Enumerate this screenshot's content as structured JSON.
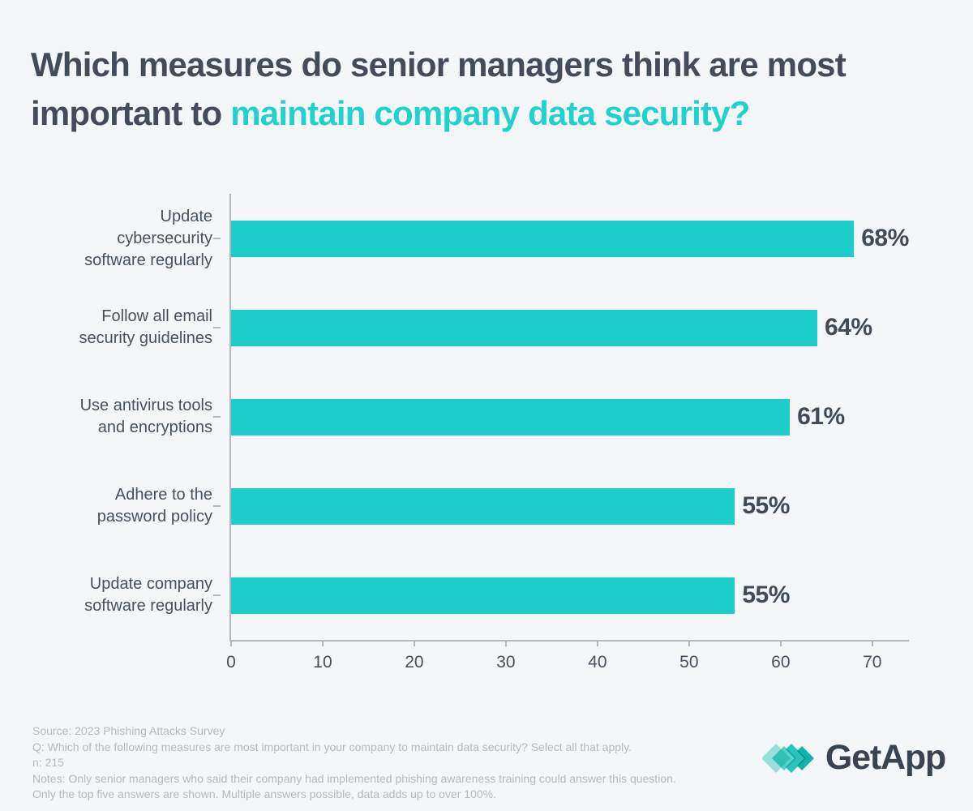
{
  "colors": {
    "background": "#f4f6f7",
    "title_dark": "#434c58",
    "accent_teal": "#1fd2cb",
    "bar_teal": "#1ccdc9",
    "axis_gray": "#b4b8bc",
    "text_dark": "#47515d",
    "footer_gray": "#b6bac0",
    "logo_dark": "#3a4450"
  },
  "title": {
    "line1": "Which measures do senior managers think are most",
    "line2_dark": "important to",
    "line2_accent": "maintain company data security?"
  },
  "chart_data": {
    "type": "bar",
    "orientation": "horizontal",
    "title": "Which measures do senior managers think are most important to maintain company data security?",
    "categories": [
      "Update cybersecurity software regularly",
      "Follow all email security guidelines",
      "Use antivirus tools and encryptions",
      "Adhere to the password policy",
      "Update company software regularly"
    ],
    "label_lines": [
      [
        "Update",
        "cybersecurity",
        "software regularly"
      ],
      [
        "Follow all email",
        "security guidelines"
      ],
      [
        "Use antivirus tools",
        "and encryptions"
      ],
      [
        "Adhere to the",
        "password policy"
      ],
      [
        "Update company",
        "software regularly"
      ]
    ],
    "values": [
      68,
      64,
      61,
      55,
      55
    ],
    "value_labels": [
      "68%",
      "64%",
      "61%",
      "55%",
      "55%"
    ],
    "x_ticks": [
      0,
      10,
      20,
      30,
      40,
      50,
      60,
      70
    ],
    "xlim": [
      0,
      74
    ],
    "xlabel": "",
    "ylabel": "",
    "unit": "%",
    "bar_color": "#1ccdc9",
    "grid": false,
    "legend": false
  },
  "footer": {
    "lines": [
      "Source: 2023 Phishing Attacks Survey",
      "Q: Which of the following measures are most important in your company to maintain data security? Select all that apply.",
      "n: 215",
      "Notes: Only senior managers who said their company had implemented phishing awareness training could answer this question.",
      "Only the top five answers are shown. Multiple answers possible, data adds up to over 100%."
    ]
  },
  "logo": {
    "text": "GetApp",
    "icon": "getapp-diamond-chevrons-icon"
  }
}
